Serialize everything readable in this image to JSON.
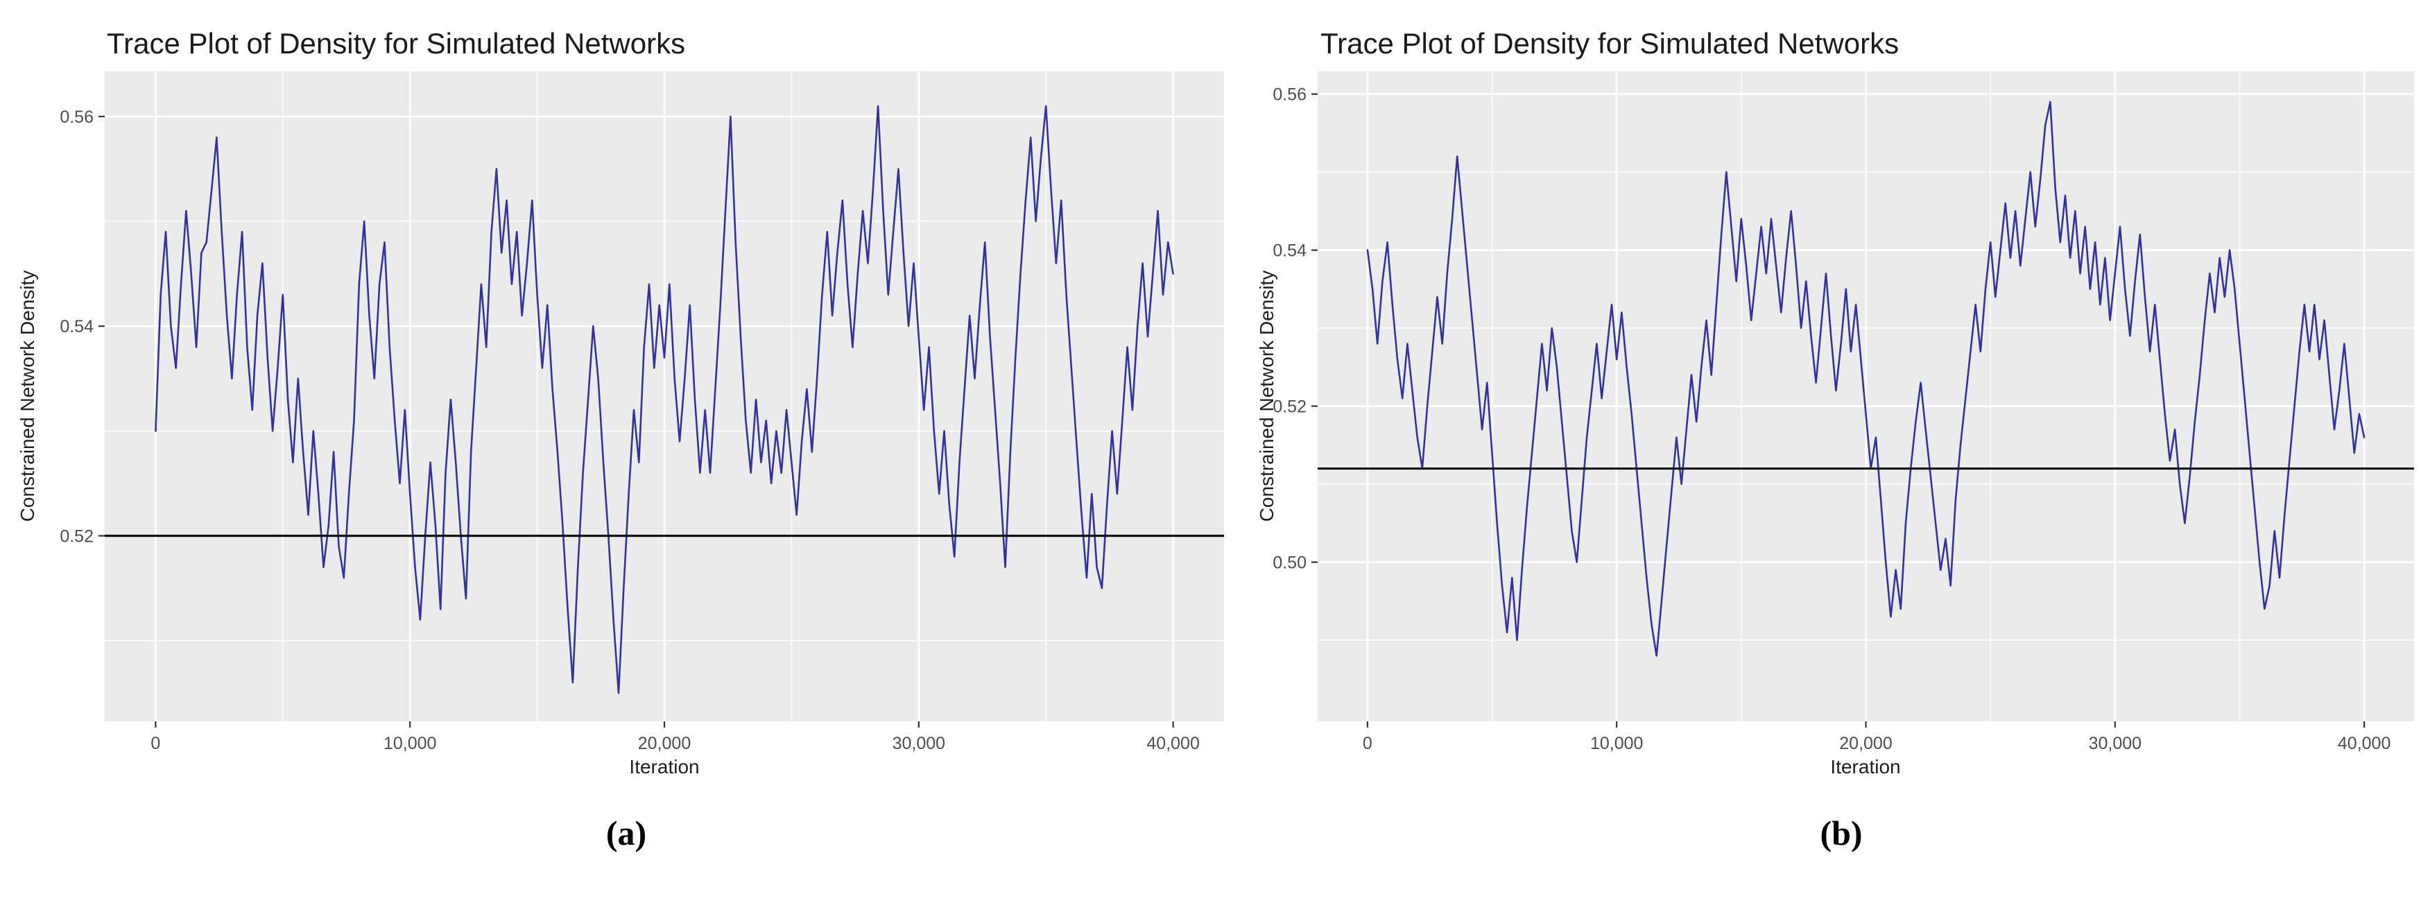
{
  "figure": {
    "panels": [
      {
        "caption": "(a)"
      },
      {
        "caption": "(b)"
      }
    ]
  },
  "chart_data": [
    {
      "type": "line",
      "panel": "a",
      "title": "Trace Plot of Density for Simulated Networks",
      "xlabel": "Iteration",
      "ylabel": "Constrained Network Density",
      "xlim": [
        -2000,
        42000
      ],
      "ylim": [
        0.5023,
        0.5643
      ],
      "grid": true,
      "legend": "none",
      "x_ticks": [
        {
          "value": 0,
          "label": "0"
        },
        {
          "value": 10000,
          "label": "10,000"
        },
        {
          "value": 20000,
          "label": "20,000"
        },
        {
          "value": 30000,
          "label": "30,000"
        },
        {
          "value": 40000,
          "label": "40,000"
        }
      ],
      "y_ticks": [
        {
          "value": 0.52,
          "label": "0.52"
        },
        {
          "value": 0.54,
          "label": "0.54"
        },
        {
          "value": 0.56,
          "label": "0.56"
        }
      ],
      "x_minor_ticks": [
        5000,
        15000,
        25000,
        35000
      ],
      "y_minor_ticks": [
        0.51,
        0.53,
        0.55
      ],
      "reference_line": {
        "y": 0.52,
        "color": "#141414"
      },
      "colors": {
        "panel_bg": "#ebebeb",
        "grid": "#ffffff",
        "tick": "#333333",
        "tick_label": "#4d4d4d",
        "trace": "#32329b"
      },
      "series": [
        {
          "name": "simulated-network-density",
          "color": "#32329b",
          "x_start": 0,
          "x_step": 200,
          "y": [
            0.53,
            0.543,
            0.549,
            0.54,
            0.536,
            0.544,
            0.551,
            0.545,
            0.538,
            0.547,
            0.548,
            0.553,
            0.558,
            0.549,
            0.541,
            0.535,
            0.543,
            0.549,
            0.538,
            0.532,
            0.541,
            0.546,
            0.537,
            0.53,
            0.536,
            0.543,
            0.533,
            0.527,
            0.535,
            0.528,
            0.522,
            0.53,
            0.524,
            0.517,
            0.521,
            0.528,
            0.519,
            0.516,
            0.524,
            0.531,
            0.544,
            0.55,
            0.541,
            0.535,
            0.544,
            0.548,
            0.538,
            0.531,
            0.525,
            0.532,
            0.524,
            0.517,
            0.512,
            0.52,
            0.527,
            0.521,
            0.513,
            0.526,
            0.533,
            0.527,
            0.52,
            0.514,
            0.528,
            0.536,
            0.544,
            0.538,
            0.549,
            0.555,
            0.547,
            0.552,
            0.544,
            0.549,
            0.541,
            0.546,
            0.552,
            0.543,
            0.536,
            0.542,
            0.534,
            0.528,
            0.521,
            0.513,
            0.506,
            0.517,
            0.526,
            0.533,
            0.54,
            0.535,
            0.527,
            0.52,
            0.512,
            0.505,
            0.515,
            0.524,
            0.532,
            0.527,
            0.538,
            0.544,
            0.536,
            0.542,
            0.537,
            0.544,
            0.535,
            0.529,
            0.535,
            0.542,
            0.533,
            0.526,
            0.532,
            0.526,
            0.534,
            0.542,
            0.551,
            0.56,
            0.548,
            0.539,
            0.531,
            0.526,
            0.533,
            0.527,
            0.531,
            0.525,
            0.53,
            0.526,
            0.532,
            0.527,
            0.522,
            0.529,
            0.534,
            0.528,
            0.535,
            0.543,
            0.549,
            0.541,
            0.547,
            0.552,
            0.544,
            0.538,
            0.545,
            0.551,
            0.546,
            0.553,
            0.561,
            0.551,
            0.543,
            0.549,
            0.555,
            0.547,
            0.54,
            0.546,
            0.539,
            0.532,
            0.538,
            0.53,
            0.524,
            0.53,
            0.523,
            0.518,
            0.527,
            0.534,
            0.541,
            0.535,
            0.542,
            0.548,
            0.539,
            0.532,
            0.525,
            0.517,
            0.528,
            0.537,
            0.545,
            0.552,
            0.558,
            0.55,
            0.556,
            0.561,
            0.553,
            0.546,
            0.552,
            0.543,
            0.536,
            0.529,
            0.522,
            0.516,
            0.524,
            0.517,
            0.515,
            0.523,
            0.53,
            0.524,
            0.531,
            0.538,
            0.532,
            0.54,
            0.546,
            0.539,
            0.545,
            0.551,
            0.543,
            0.548,
            0.545
          ]
        }
      ]
    },
    {
      "type": "line",
      "panel": "b",
      "title": "Trace Plot of Density for Simulated Networks",
      "xlabel": "Iteration",
      "ylabel": "Constrained Network Density",
      "xlim": [
        -2000,
        42000
      ],
      "ylim": [
        0.4796,
        0.5629
      ],
      "grid": true,
      "legend": "none",
      "x_ticks": [
        {
          "value": 0,
          "label": "0"
        },
        {
          "value": 10000,
          "label": "10,000"
        },
        {
          "value": 20000,
          "label": "20,000"
        },
        {
          "value": 30000,
          "label": "30,000"
        },
        {
          "value": 40000,
          "label": "40,000"
        }
      ],
      "y_ticks": [
        {
          "value": 0.5,
          "label": "0.50"
        },
        {
          "value": 0.52,
          "label": "0.52"
        },
        {
          "value": 0.54,
          "label": "0.54"
        },
        {
          "value": 0.56,
          "label": "0.56"
        }
      ],
      "x_minor_ticks": [
        5000,
        15000,
        25000,
        35000
      ],
      "y_minor_ticks": [
        0.49,
        0.51,
        0.53,
        0.55
      ],
      "reference_line": {
        "y": 0.512,
        "color": "#141414"
      },
      "colors": {
        "panel_bg": "#ebebeb",
        "grid": "#ffffff",
        "tick": "#333333",
        "tick_label": "#4d4d4d",
        "trace": "#32329b"
      },
      "series": [
        {
          "name": "simulated-network-density",
          "color": "#32329b",
          "x_start": 0,
          "x_step": 200,
          "y": [
            0.54,
            0.535,
            0.528,
            0.536,
            0.541,
            0.533,
            0.526,
            0.521,
            0.528,
            0.522,
            0.516,
            0.512,
            0.52,
            0.527,
            0.534,
            0.528,
            0.537,
            0.544,
            0.552,
            0.545,
            0.538,
            0.531,
            0.524,
            0.517,
            0.523,
            0.514,
            0.505,
            0.497,
            0.491,
            0.498,
            0.49,
            0.499,
            0.507,
            0.514,
            0.521,
            0.528,
            0.522,
            0.53,
            0.525,
            0.518,
            0.511,
            0.504,
            0.5,
            0.508,
            0.516,
            0.522,
            0.528,
            0.521,
            0.527,
            0.533,
            0.526,
            0.532,
            0.525,
            0.519,
            0.512,
            0.505,
            0.498,
            0.492,
            0.488,
            0.495,
            0.502,
            0.509,
            0.516,
            0.51,
            0.517,
            0.524,
            0.518,
            0.525,
            0.531,
            0.524,
            0.533,
            0.542,
            0.55,
            0.543,
            0.536,
            0.544,
            0.538,
            0.531,
            0.537,
            0.543,
            0.537,
            0.544,
            0.538,
            0.532,
            0.539,
            0.545,
            0.538,
            0.53,
            0.536,
            0.529,
            0.523,
            0.53,
            0.537,
            0.529,
            0.522,
            0.528,
            0.535,
            0.527,
            0.533,
            0.526,
            0.519,
            0.512,
            0.516,
            0.508,
            0.5,
            0.493,
            0.499,
            0.494,
            0.505,
            0.512,
            0.518,
            0.523,
            0.517,
            0.511,
            0.505,
            0.499,
            0.503,
            0.497,
            0.508,
            0.515,
            0.521,
            0.527,
            0.533,
            0.527,
            0.535,
            0.541,
            0.534,
            0.54,
            0.546,
            0.539,
            0.545,
            0.538,
            0.544,
            0.55,
            0.543,
            0.549,
            0.556,
            0.559,
            0.548,
            0.541,
            0.547,
            0.539,
            0.545,
            0.537,
            0.543,
            0.535,
            0.541,
            0.533,
            0.539,
            0.531,
            0.537,
            0.543,
            0.535,
            0.529,
            0.536,
            0.542,
            0.534,
            0.527,
            0.533,
            0.526,
            0.519,
            0.513,
            0.517,
            0.51,
            0.505,
            0.511,
            0.518,
            0.524,
            0.531,
            0.537,
            0.532,
            0.539,
            0.534,
            0.54,
            0.535,
            0.528,
            0.521,
            0.514,
            0.507,
            0.5,
            0.494,
            0.497,
            0.504,
            0.498,
            0.506,
            0.513,
            0.52,
            0.527,
            0.533,
            0.527,
            0.533,
            0.526,
            0.531,
            0.524,
            0.517,
            0.522,
            0.528,
            0.521,
            0.514,
            0.519,
            0.516
          ]
        }
      ]
    }
  ]
}
